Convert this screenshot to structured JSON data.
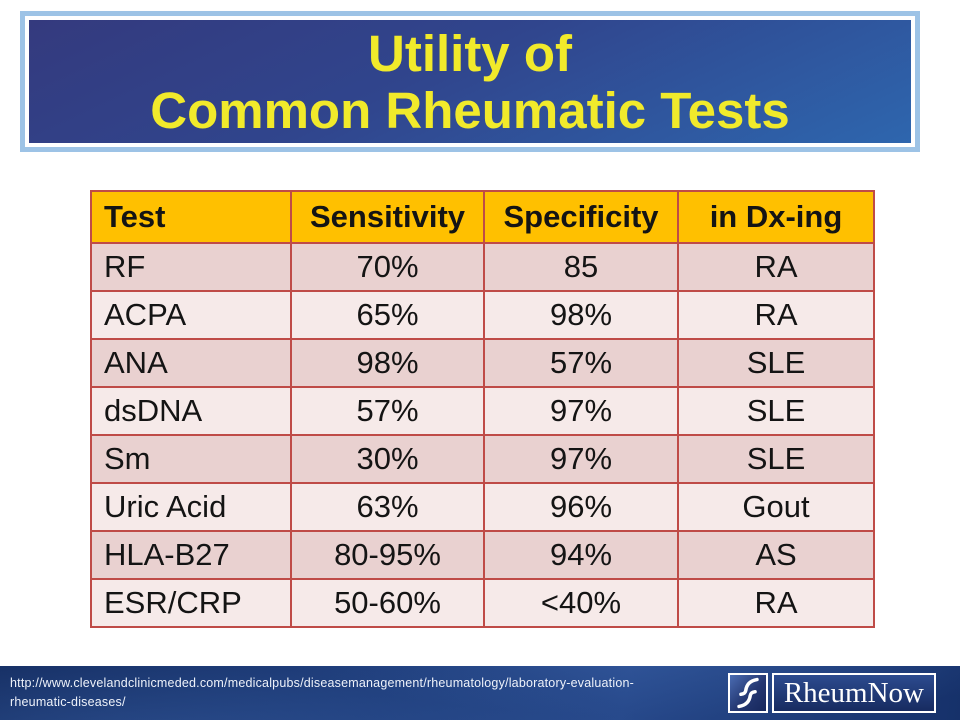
{
  "title": {
    "line1": "Utility of",
    "line2": "Common Rheumatic Tests"
  },
  "table": {
    "headers": [
      "Test",
      "Sensitivity",
      "Specificity",
      "in Dx-ing"
    ],
    "rows": [
      [
        "RF",
        "70%",
        "85",
        "RA"
      ],
      [
        "ACPA",
        "65%",
        "98%",
        "RA"
      ],
      [
        "ANA",
        "98%",
        "57%",
        "SLE"
      ],
      [
        "dsDNA",
        "57%",
        "97%",
        "SLE"
      ],
      [
        "Sm",
        "30%",
        "97%",
        "SLE"
      ],
      [
        "Uric Acid",
        "63%",
        "96%",
        "Gout"
      ],
      [
        "HLA-B27",
        "80-95%",
        "94%",
        "AS"
      ],
      [
        "ESR/CRP",
        "50-60%",
        "<40%",
        "RA"
      ]
    ]
  },
  "footer": {
    "url_line1": "http://www.clevelandclinicmeded.com/medicalpubs/diseasemanagement/rheumatology/laboratory-evaluation-",
    "url_line2": "rheumatic-diseases/",
    "logo_text": "RheumNow"
  },
  "colors": {
    "banner_border": "#9dc3e6",
    "banner_gradient_top": "#343a7e",
    "banner_gradient_bottom": "#2e66ae",
    "title_text": "#f1ea2b",
    "header_bg": "#ffc000",
    "row_dark": "#e9d1d0",
    "row_light": "#f6eae9",
    "table_border": "#bf4b47",
    "footer_bg": "#1d3b78",
    "footer_text": "#eef2fa"
  }
}
